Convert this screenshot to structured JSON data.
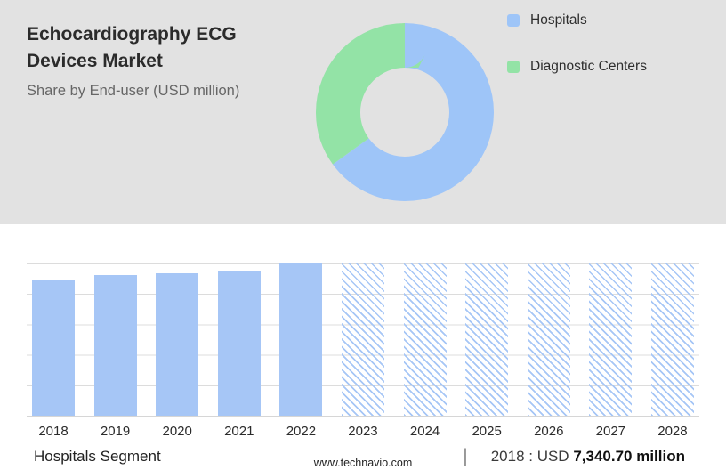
{
  "header": {
    "title": "Echocardiography ECG Devices Market",
    "subtitle": "Share by End-user (USD million)"
  },
  "legend": [
    {
      "label": "Hospitals",
      "color": "#9ec5f8"
    },
    {
      "label": "Diagnostic Centers",
      "color": "#93e3a6"
    }
  ],
  "chart_data": [
    {
      "type": "pie",
      "donut": true,
      "title": "Share by End-user (USD million)",
      "labels": [
        "Hospitals",
        "Diagnostic Centers"
      ],
      "values": [
        65,
        35
      ],
      "unit": "percent, estimated from arc angles",
      "colors": [
        "#9ec5f8",
        "#93e3a6"
      ],
      "legend_position": "right"
    },
    {
      "type": "bar",
      "categories": [
        "2018",
        "2019",
        "2020",
        "2021",
        "2022",
        "2023",
        "2024",
        "2025",
        "2026",
        "2027",
        "2028"
      ],
      "series": [
        {
          "name": "Hospitals segment revenue (USD million)",
          "values_relative": [
            0.885,
            0.92,
            0.93,
            0.945,
            1.0,
            1.0,
            1.0,
            1.0,
            1.0,
            1.0,
            1.0
          ]
        }
      ],
      "known_values": {
        "2018": "USD 7,340.70 million"
      },
      "solid_bar_count": 5,
      "forecast_from": "2023",
      "bar_color": "#a6c6f6",
      "grid": true,
      "y_axis_labels_visible": false
    }
  ],
  "footer": {
    "segment_label": "Hospitals Segment",
    "separator": "|",
    "value_prefix": "2018 : USD ",
    "value_bold": "7,340.70 million",
    "website": "www.technavio.com"
  }
}
